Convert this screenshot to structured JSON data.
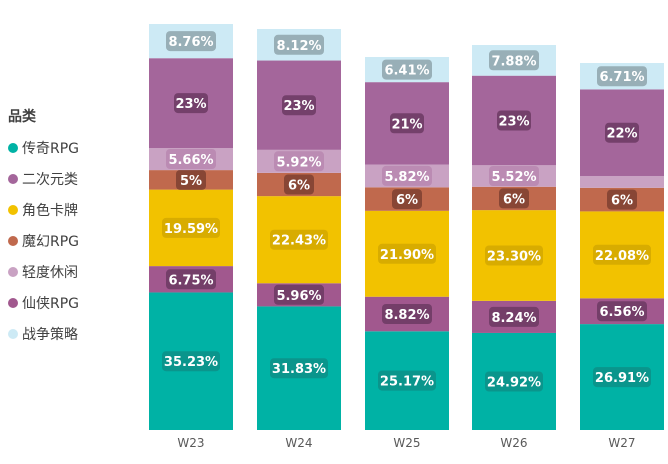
{
  "chart_data": {
    "type": "bar",
    "stacked": true,
    "normalized": true,
    "legend_title": "品类",
    "legend_position": "left",
    "categories": [
      "W23",
      "W24",
      "W25",
      "W26",
      "W27"
    ],
    "ylim": [
      0,
      100
    ],
    "series": [
      {
        "name": "传奇RPG",
        "color": "#00b2a5",
        "values": [
          35.23,
          31.83,
          25.17,
          24.92,
          26.91
        ],
        "labels": [
          "35.23%",
          "31.83%",
          "25.17%",
          "24.92%",
          "26.91%"
        ]
      },
      {
        "name": "仙侠RPG",
        "color": "#a1588e",
        "values": [
          6.75,
          5.96,
          8.82,
          8.24,
          6.56
        ],
        "labels": [
          "6.75%",
          "5.96%",
          "8.82%",
          "8.24%",
          "6.56%"
        ]
      },
      {
        "name": "角色卡牌",
        "color": "#f2c200",
        "values": [
          19.59,
          22.43,
          21.9,
          23.3,
          22.08
        ],
        "labels": [
          "19.59%",
          "22.43%",
          "21.90%",
          "23.30%",
          "22.08%"
        ]
      },
      {
        "name": "魔幻RPG",
        "color": "#c0694d",
        "values": [
          5,
          6,
          6,
          6,
          6
        ],
        "labels": [
          "5%",
          "6%",
          "6%",
          "6%",
          "6%"
        ]
      },
      {
        "name": "轻度休闲",
        "color": "#c9a2c3",
        "values": [
          5.66,
          5.92,
          5.82,
          5.52,
          3.0
        ],
        "labels": [
          "5.66%",
          "5.92%",
          "5.82%",
          "5.52%",
          ""
        ]
      },
      {
        "name": "二次元类",
        "color": "#a4669b",
        "values": [
          23,
          23,
          21,
          23,
          22
        ],
        "labels": [
          "23%",
          "23%",
          "21%",
          "23%",
          "22%"
        ]
      },
      {
        "name": "战争策略",
        "color": "#cdeaf5",
        "values": [
          8.76,
          8.12,
          6.41,
          7.88,
          6.71
        ],
        "labels": [
          "8.76%",
          "8.12%",
          "6.41%",
          "7.88%",
          "6.71%"
        ]
      }
    ],
    "legend_order": [
      "传奇RPG",
      "二次元类",
      "角色卡牌",
      "魔幻RPG",
      "轻度休闲",
      "仙侠RPG",
      "战争策略"
    ]
  }
}
